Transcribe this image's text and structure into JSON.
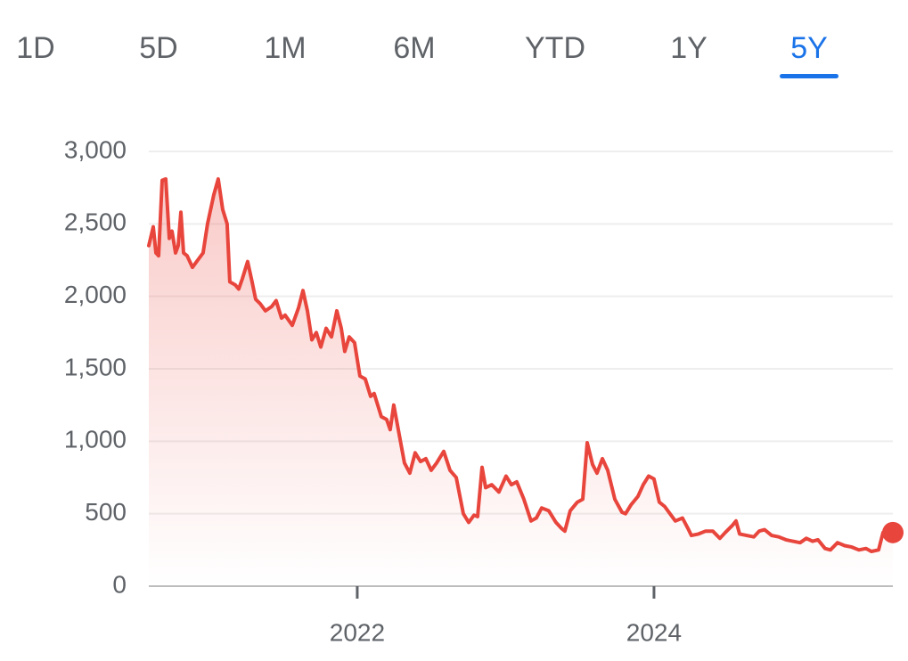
{
  "tabs": [
    "1D",
    "5D",
    "1M",
    "6M",
    "YTD",
    "1Y",
    "5Y"
  ],
  "selected": "5Y",
  "chart_data": {
    "type": "line",
    "color": "#e8453c",
    "grid": true,
    "xlim": [
      2020.595,
      2025.61
    ],
    "xticks": [
      2022,
      2024
    ],
    "ylim": [
      0,
      3000
    ],
    "yticks": [
      0,
      500,
      {
        "value": 1000,
        "label": "1,000"
      },
      {
        "value": 1500,
        "label": "1,500"
      },
      {
        "value": 2000,
        "label": "2,000"
      },
      {
        "value": 2500,
        "label": "2,500"
      },
      {
        "value": 3000,
        "label": "3,000"
      }
    ],
    "x": [
      2020.595,
      2020.625,
      2020.643,
      2020.661,
      2020.685,
      2020.709,
      2020.733,
      2020.751,
      2020.775,
      2020.793,
      2020.811,
      2020.829,
      2020.853,
      2020.889,
      2020.925,
      2020.961,
      2020.991,
      2021.033,
      2021.063,
      2021.093,
      2021.123,
      2021.141,
      2021.177,
      2021.201,
      2021.225,
      2021.261,
      2021.291,
      2021.315,
      2021.345,
      2021.381,
      2021.423,
      2021.453,
      2021.489,
      2021.514,
      2021.562,
      2021.604,
      2021.634,
      2021.664,
      2021.694,
      2021.724,
      2021.754,
      2021.79,
      2021.826,
      2021.862,
      2021.892,
      2021.916,
      2021.946,
      2021.982,
      2022.018,
      2022.054,
      2022.09,
      2022.114,
      2022.162,
      2022.198,
      2022.222,
      2022.246,
      2022.282,
      2022.318,
      2022.354,
      2022.39,
      2022.426,
      2022.462,
      2022.498,
      2022.535,
      2022.583,
      2022.625,
      2022.667,
      2022.715,
      2022.751,
      2022.787,
      2022.811,
      2022.841,
      2022.865,
      2022.907,
      2022.955,
      2023.003,
      2023.039,
      2023.075,
      2023.123,
      2023.171,
      2023.207,
      2023.243,
      2023.291,
      2023.339,
      2023.375,
      2023.399,
      2023.435,
      2023.483,
      2023.52,
      2023.55,
      2023.586,
      2023.616,
      2023.652,
      2023.688,
      2023.736,
      2023.784,
      2023.808,
      2023.844,
      2023.892,
      2023.928,
      2023.964,
      2024.0,
      2024.036,
      2024.072,
      2024.108,
      2024.144,
      2024.192,
      2024.228,
      2024.252,
      2024.3,
      2024.348,
      2024.396,
      2024.444,
      2024.48,
      2024.529,
      2024.553,
      2024.577,
      2024.625,
      2024.673,
      2024.709,
      2024.745,
      2024.793,
      2024.841,
      2024.889,
      2024.937,
      2024.985,
      2025.027,
      2025.069,
      2025.105,
      2025.153,
      2025.189,
      2025.237,
      2025.285,
      2025.333,
      2025.381,
      2025.429,
      2025.465,
      2025.514,
      2025.544,
      2025.61
    ],
    "values": [
      2350,
      2480,
      2300,
      2280,
      2800,
      2810,
      2400,
      2450,
      2300,
      2350,
      2580,
      2300,
      2280,
      2200,
      2250,
      2300,
      2500,
      2700,
      2810,
      2600,
      2500,
      2100,
      2080,
      2050,
      2120,
      2240,
      2100,
      1980,
      1950,
      1900,
      1930,
      1970,
      1850,
      1870,
      1800,
      1920,
      2040,
      1900,
      1700,
      1750,
      1650,
      1780,
      1720,
      1900,
      1780,
      1620,
      1720,
      1680,
      1450,
      1430,
      1310,
      1330,
      1170,
      1150,
      1080,
      1250,
      1050,
      850,
      780,
      920,
      860,
      880,
      800,
      850,
      930,
      800,
      750,
      500,
      440,
      490,
      480,
      820,
      680,
      700,
      650,
      760,
      700,
      720,
      600,
      450,
      470,
      540,
      520,
      440,
      400,
      380,
      520,
      580,
      600,
      990,
      840,
      780,
      880,
      800,
      600,
      510,
      500,
      560,
      620,
      700,
      760,
      740,
      580,
      550,
      500,
      450,
      470,
      400,
      350,
      360,
      380,
      380,
      330,
      370,
      420,
      450,
      360,
      350,
      340,
      380,
      390,
      350,
      340,
      320,
      310,
      300,
      330,
      310,
      320,
      260,
      250,
      300,
      280,
      270,
      250,
      260,
      240,
      250,
      370,
      370
    ]
  }
}
